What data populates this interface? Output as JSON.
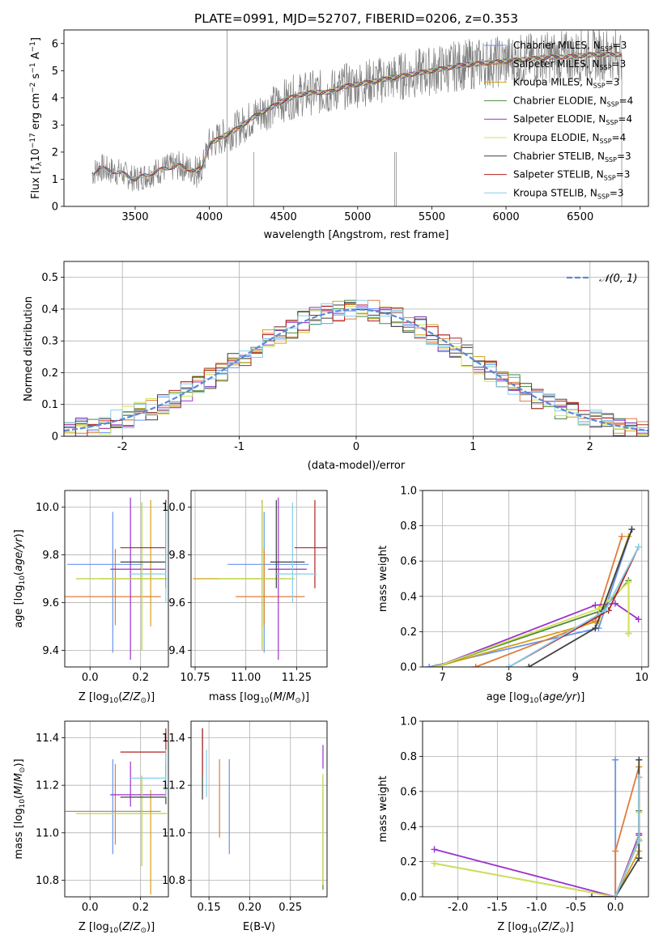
{
  "figure_title": "PLATE=0991, MJD=52707, FIBERID=0206, z=0.353",
  "models": [
    {
      "name": "Chabrier MILES",
      "nssp": "3",
      "color": "#6495ed"
    },
    {
      "name": "Salpeter MILES",
      "nssp": "3",
      "color": "#e07b39"
    },
    {
      "name": "Kroupa MILES",
      "nssp": "3",
      "color": "#d4a017"
    },
    {
      "name": "Chabrier ELODIE",
      "nssp": "4",
      "color": "#4a8a3a"
    },
    {
      "name": "Salpeter ELODIE",
      "nssp": "4",
      "color": "#9932cc"
    },
    {
      "name": "Kroupa ELODIE",
      "nssp": "4",
      "color": "#d4e157"
    },
    {
      "name": "Chabrier STELIB",
      "nssp": "3",
      "color": "#404040"
    },
    {
      "name": "Salpeter STELIB",
      "nssp": "3",
      "color": "#b22222"
    },
    {
      "name": "Kroupa STELIB",
      "nssp": "3",
      "color": "#87ceeb"
    }
  ],
  "chart_data": [
    {
      "id": "spectrum",
      "type": "line",
      "title": "PLATE=0991, MJD=52707, FIBERID=0206, z=0.353",
      "xlabel": "wavelength [Angstrom, rest frame]",
      "ylabel": "Flux [f_λ 10^-17 erg cm^-2 s^-1 A^-1]",
      "xlim": [
        3020,
        6960
      ],
      "ylim": [
        0,
        6.5
      ],
      "xticks": [
        3500,
        4000,
        4500,
        5000,
        5500,
        6000,
        6500
      ],
      "yticks": [
        0,
        1,
        2,
        3,
        4,
        5,
        6
      ],
      "grid": false,
      "legend": "top-right",
      "data_color": "#808080",
      "continuum_x": [
        3210,
        3260,
        3300,
        3400,
        3500,
        3600,
        3700,
        3800,
        3900,
        3950,
        4000,
        4100,
        4200,
        4300,
        4400,
        4500,
        4600,
        4700,
        4800,
        4900,
        5000,
        5100,
        5200,
        5300,
        5400,
        5500,
        5600,
        5700,
        5800,
        5900,
        6000,
        6100,
        6200,
        6300,
        6400,
        6500,
        6600,
        6700,
        6780
      ],
      "continuum_y": [
        1.2,
        1.45,
        1.35,
        1.25,
        1.0,
        1.2,
        1.4,
        1.5,
        1.3,
        1.4,
        2.3,
        2.6,
        2.9,
        3.3,
        3.6,
        3.9,
        4.1,
        4.2,
        4.2,
        4.4,
        4.5,
        4.6,
        4.7,
        4.8,
        4.9,
        5.0,
        5.1,
        5.2,
        5.25,
        5.3,
        5.35,
        5.4,
        5.45,
        5.5,
        5.5,
        5.55,
        5.6,
        5.6,
        5.6
      ]
    },
    {
      "id": "residuals",
      "type": "line",
      "xlabel": "(data-model)/error",
      "ylabel": "Normed distribution",
      "xlim": [
        -2.5,
        2.5
      ],
      "ylim": [
        0,
        0.55
      ],
      "xticks": [
        -2,
        -1,
        0,
        1,
        2
      ],
      "yticks": [
        0.0,
        0.1,
        0.2,
        0.3,
        0.4,
        0.5
      ],
      "grid": true,
      "legend": "top-right",
      "gaussian_label": "N(0,1)",
      "gaussian_color": "#5a8ad6"
    },
    {
      "id": "age-vs-Z",
      "type": "scatter",
      "xlabel": "Z [log10(Z/Z⊙)]",
      "ylabel": "age [log10(age/yr)]",
      "xlim": [
        -0.1,
        0.31
      ],
      "ylim": [
        9.33,
        10.07
      ],
      "xticks": [
        "0.0",
        "0.2"
      ],
      "yticks": [
        "9.4",
        "9.6",
        "9.8",
        "10.0"
      ],
      "grid": true,
      "points": [
        {
          "x": 0.09,
          "y": 9.76,
          "xerr": [
            0.18,
            0.12
          ],
          "yerr": [
            0.37,
            0.22
          ]
        },
        {
          "x": 0.1,
          "y": 9.625,
          "xerr": [
            0.2,
            0.18
          ],
          "yerr": [
            0.12,
            0.2
          ]
        },
        {
          "x": 0.24,
          "y": 9.7,
          "xerr": [
            0.2,
            0.06
          ],
          "yerr": [
            0.2,
            0.33
          ]
        },
        {
          "x": 0.205,
          "y": 9.7,
          "xerr": [
            0.26,
            0.1
          ],
          "yerr": [
            0.3,
            0.32
          ]
        },
        {
          "x": 0.16,
          "y": 9.74,
          "xerr": [
            0.08,
            0.14
          ],
          "yerr": [
            0.38,
            0.3
          ]
        },
        {
          "x": 0.205,
          "y": 9.7,
          "xerr": [
            0.26,
            0.1
          ],
          "yerr": [
            0.3,
            0.32
          ]
        },
        {
          "x": 0.3,
          "y": 9.77,
          "xerr": [
            0.18,
            0.0
          ],
          "yerr": [
            0.11,
            0.26
          ]
        },
        {
          "x": 0.3,
          "y": 9.83,
          "xerr": [
            0.18,
            0.0
          ],
          "yerr": [
            0.17,
            0.2
          ]
        },
        {
          "x": 0.3,
          "y": 9.72,
          "xerr": [
            0.14,
            0.0
          ],
          "yerr": [
            0.12,
            0.3
          ]
        }
      ]
    },
    {
      "id": "age-vs-mass",
      "type": "scatter",
      "xlabel": "mass [log10(M/M⊙)]",
      "ylabel": "",
      "xlim": [
        10.73,
        11.4
      ],
      "ylim": [
        9.33,
        10.07
      ],
      "xticks": [
        "10.75",
        "11.00",
        "11.25"
      ],
      "yticks": [
        "9.4",
        "9.6",
        "9.8",
        "10.0"
      ],
      "grid": true,
      "points": [
        {
          "x": 11.09,
          "y": 9.76,
          "xerr": [
            0.18,
            0.22
          ],
          "yerr": [
            0.37,
            0.22
          ]
        },
        {
          "x": 11.09,
          "y": 9.625,
          "xerr": [
            0.14,
            0.2
          ],
          "yerr": [
            0.12,
            0.2
          ]
        },
        {
          "x": 11.08,
          "y": 9.7,
          "xerr": [
            0.34,
            0.1
          ],
          "yerr": [
            0.2,
            0.33
          ]
        },
        {
          "x": 11.08,
          "y": 9.7,
          "xerr": [
            0.22,
            0.16
          ],
          "yerr": [
            0.3,
            0.32
          ]
        },
        {
          "x": 11.16,
          "y": 9.74,
          "xerr": [
            0.05,
            0.14
          ],
          "yerr": [
            0.38,
            0.3
          ]
        },
        {
          "x": 11.08,
          "y": 9.7,
          "xerr": [
            0.22,
            0.16
          ],
          "yerr": [
            0.3,
            0.32
          ]
        },
        {
          "x": 11.15,
          "y": 9.77,
          "xerr": [
            0.03,
            0.14
          ],
          "yerr": [
            0.11,
            0.26
          ]
        },
        {
          "x": 11.34,
          "y": 9.83,
          "xerr": [
            0.1,
            0.1
          ],
          "yerr": [
            0.17,
            0.2
          ]
        },
        {
          "x": 11.23,
          "y": 9.72,
          "xerr": [
            0.08,
            0.12
          ],
          "yerr": [
            0.12,
            0.3
          ]
        }
      ]
    },
    {
      "id": "mass-weight-vs-age",
      "type": "line",
      "xlabel": "age [log10(age/yr)]",
      "ylabel": "mass weight",
      "xlim": [
        6.7,
        10.1
      ],
      "ylim": [
        0,
        1
      ],
      "xticks": [
        "7",
        "8",
        "9",
        "10"
      ],
      "yticks": [
        "0.0",
        "0.2",
        "0.4",
        "0.6",
        "0.8",
        "1.0"
      ],
      "grid": true,
      "series": [
        {
          "x": [
            6.8,
            9.35,
            9.85
          ],
          "y": [
            0.0,
            0.22,
            0.78
          ]
        },
        {
          "x": [
            7.5,
            9.3,
            9.7
          ],
          "y": [
            0.0,
            0.26,
            0.74
          ]
        },
        {
          "x": [
            6.9,
            9.35,
            9.8
          ],
          "y": [
            0.0,
            0.26,
            0.74
          ]
        },
        {
          "x": [
            6.9,
            9.4,
            9.8,
            9.8
          ],
          "y": [
            0.0,
            0.32,
            0.49,
            0.19
          ]
        },
        {
          "x": [
            6.9,
            9.3,
            9.6,
            9.95
          ],
          "y": [
            0.0,
            0.35,
            0.36,
            0.27
          ]
        },
        {
          "x": [
            6.9,
            9.35,
            9.8,
            9.8
          ],
          "y": [
            0.0,
            0.33,
            0.48,
            0.19
          ]
        },
        {
          "x": [
            8.3,
            9.3,
            9.85
          ],
          "y": [
            0.0,
            0.22,
            0.78
          ]
        },
        {
          "x": [
            8.0,
            9.5,
            9.95
          ],
          "y": [
            0.0,
            0.32,
            0.68
          ]
        },
        {
          "x": [
            8.0,
            9.45,
            9.95
          ],
          "y": [
            0.0,
            0.32,
            0.68
          ]
        }
      ]
    },
    {
      "id": "mass-vs-Z",
      "type": "scatter",
      "xlabel": "Z [log10(Z/Z⊙)]",
      "ylabel": "mass [log10(M/M⊙)]",
      "xlim": [
        -0.1,
        0.31
      ],
      "ylim": [
        10.73,
        11.47
      ],
      "xticks": [
        "0.0",
        "0.2"
      ],
      "yticks": [
        "10.8",
        "11.0",
        "11.2",
        "11.4"
      ],
      "grid": true,
      "points": [
        {
          "x": 0.09,
          "y": 11.09,
          "yerr": [
            0.18,
            0.22
          ],
          "xerr": [
            0.18,
            0.12
          ]
        },
        {
          "x": 0.1,
          "y": 11.09,
          "yerr": [
            0.14,
            0.2
          ],
          "xerr": [
            0.2,
            0.18
          ]
        },
        {
          "x": 0.24,
          "y": 11.08,
          "yerr": [
            0.34,
            0.1
          ],
          "xerr": [
            0.2,
            0.06
          ]
        },
        {
          "x": 0.205,
          "y": 11.08,
          "yerr": [
            0.22,
            0.16
          ],
          "xerr": [
            0.26,
            0.1
          ]
        },
        {
          "x": 0.16,
          "y": 11.16,
          "yerr": [
            0.05,
            0.14
          ],
          "xerr": [
            0.08,
            0.14
          ]
        },
        {
          "x": 0.205,
          "y": 11.08,
          "yerr": [
            0.22,
            0.16
          ],
          "xerr": [
            0.26,
            0.1
          ]
        },
        {
          "x": 0.3,
          "y": 11.15,
          "yerr": [
            0.03,
            0.14
          ],
          "xerr": [
            0.18,
            0.0
          ]
        },
        {
          "x": 0.3,
          "y": 11.34,
          "yerr": [
            0.1,
            0.1
          ],
          "xerr": [
            0.18,
            0.0
          ]
        },
        {
          "x": 0.3,
          "y": 11.23,
          "yerr": [
            0.08,
            0.12
          ],
          "xerr": [
            0.14,
            0.0
          ]
        }
      ]
    },
    {
      "id": "mass-vs-EBV",
      "type": "scatter",
      "xlabel": "E(B-V)",
      "ylabel": "",
      "xlim": [
        0.128,
        0.295
      ],
      "ylim": [
        10.73,
        11.47
      ],
      "xticks": [
        "0.15",
        "0.20",
        "0.25"
      ],
      "yticks": [
        "10.8",
        "11.0",
        "11.2",
        "11.4"
      ],
      "grid": true,
      "points": [
        {
          "x": 0.175,
          "y": 11.09,
          "yerr": [
            0.18,
            0.22
          ]
        },
        {
          "x": 0.163,
          "y": 11.09,
          "yerr": [
            0.11,
            0.22
          ]
        },
        {
          "x": 0.29,
          "y": 11.08,
          "yerr": [
            0.3,
            0.1
          ]
        },
        {
          "x": 0.29,
          "y": 11.08,
          "yerr": [
            0.32,
            0.16
          ]
        },
        {
          "x": 0.29,
          "y": 11.32,
          "yerr": [
            0.05,
            0.05
          ]
        },
        {
          "x": 0.29,
          "y": 11.08,
          "yerr": [
            0.3,
            0.17
          ]
        },
        {
          "x": 0.142,
          "y": 11.3,
          "yerr": [
            0.16,
            0.14
          ]
        },
        {
          "x": 0.142,
          "y": 11.34,
          "yerr": [
            0.1,
            0.1
          ]
        },
        {
          "x": 0.147,
          "y": 11.23,
          "yerr": [
            0.08,
            0.12
          ]
        }
      ]
    },
    {
      "id": "mass-weight-vs-Z",
      "type": "line",
      "xlabel": "Z [log10(Z/Z⊙)]",
      "ylabel": "mass weight",
      "xlim": [
        -2.45,
        0.42
      ],
      "ylim": [
        0,
        1
      ],
      "xticks": [
        "-2.0",
        "-1.5",
        "-1.0",
        "-0.5",
        "0.0"
      ],
      "yticks": [
        "0.0",
        "0.2",
        "0.4",
        "0.6",
        "0.8",
        "1.0"
      ],
      "grid": true,
      "series": [
        {
          "x": [
            0.0,
            0.0,
            0.0
          ],
          "y": [
            0.0,
            0.0,
            0.78
          ]
        },
        {
          "x": [
            0.0,
            0.0,
            0.3
          ],
          "y": [
            0.0,
            0.26,
            0.74
          ]
        },
        {
          "x": [
            0.0,
            0.3,
            0.3
          ],
          "y": [
            0.0,
            0.26,
            0.74
          ]
        },
        {
          "x": [
            -2.3,
            0.0,
            0.3,
            0.3
          ],
          "y": [
            0.19,
            0.0,
            0.32,
            0.49
          ]
        },
        {
          "x": [
            -2.3,
            0.0,
            0.3,
            0.3
          ],
          "y": [
            0.27,
            0.0,
            0.35,
            0.36
          ]
        },
        {
          "x": [
            -2.3,
            0.0,
            0.3,
            0.3
          ],
          "y": [
            0.19,
            0.0,
            0.33,
            0.48
          ]
        },
        {
          "x": [
            -0.3,
            0.0,
            0.3,
            0.3
          ],
          "y": [
            0.0,
            0.0,
            0.22,
            0.78
          ]
        },
        {
          "x": [
            0.0,
            0.3,
            0.3
          ],
          "y": [
            0.0,
            0.32,
            0.68
          ]
        },
        {
          "x": [
            0.0,
            0.3,
            0.3
          ],
          "y": [
            0.0,
            0.32,
            0.68
          ]
        }
      ]
    }
  ]
}
